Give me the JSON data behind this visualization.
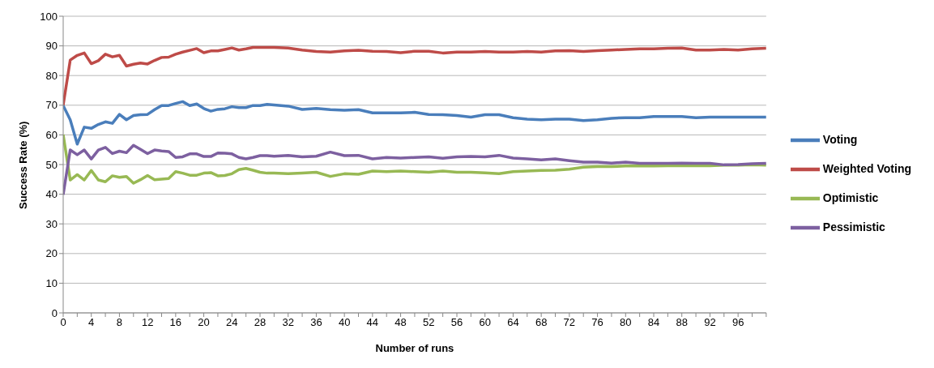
{
  "chart_data": {
    "type": "line",
    "xlabel": "Number of runs",
    "ylabel": "Success Rate (%)",
    "x": [
      0,
      1,
      2,
      3,
      4,
      5,
      6,
      7,
      8,
      9,
      10,
      11,
      12,
      13,
      14,
      15,
      16,
      17,
      18,
      19,
      20,
      21,
      22,
      23,
      24,
      25,
      26,
      27,
      28,
      29,
      30,
      32,
      34,
      36,
      38,
      40,
      42,
      44,
      46,
      48,
      50,
      52,
      54,
      56,
      58,
      60,
      62,
      64,
      66,
      68,
      70,
      72,
      74,
      76,
      78,
      80,
      82,
      84,
      86,
      88,
      90,
      92,
      94,
      96,
      98,
      100
    ],
    "series": [
      {
        "name": "Voting",
        "color": "#4a7ebb",
        "values": [
          69.9,
          65.1,
          56.9,
          62.6,
          62.2,
          63.5,
          64.4,
          63.9,
          66.9,
          65.1,
          66.5,
          66.8,
          66.9,
          68.5,
          69.9,
          69.9,
          70.6,
          71.2,
          69.9,
          70.4,
          68.9,
          68,
          68.6,
          68.8,
          69.5,
          69.2,
          69.2,
          69.9,
          69.9,
          70.3,
          70.1,
          69.7,
          68.6,
          68.9,
          68.5,
          68.3,
          68.5,
          67.4,
          67.4,
          67.4,
          67.6,
          66.9,
          66.8,
          66.5,
          66,
          66.8,
          66.8,
          65.8,
          65.3,
          65.1,
          65.3,
          65.3,
          64.8,
          65.1,
          65.6,
          65.8,
          65.8,
          66.2,
          66.2,
          66.2,
          65.8,
          66,
          66,
          66,
          66,
          66
        ]
      },
      {
        "name": "Weighted Voting",
        "color": "#be4b48",
        "values": [
          70,
          85.2,
          86.8,
          87.6,
          84,
          85,
          87.2,
          86.3,
          86.8,
          83.2,
          83.8,
          84.2,
          83.9,
          85.1,
          86.1,
          86.2,
          87.2,
          87.9,
          88.5,
          89.1,
          87.7,
          88.3,
          88.3,
          88.8,
          89.3,
          88.6,
          89,
          89.5,
          89.5,
          89.5,
          89.5,
          89.3,
          88.6,
          88.1,
          87.9,
          88.3,
          88.5,
          88.2,
          88.1,
          87.7,
          88.2,
          88.2,
          87.6,
          87.9,
          87.9,
          88.1,
          87.9,
          87.9,
          88.1,
          87.9,
          88.3,
          88.4,
          88.1,
          88.4,
          88.6,
          88.8,
          89,
          89,
          89.2,
          89.3,
          88.6,
          88.6,
          88.8,
          88.6,
          89,
          89.2
        ]
      },
      {
        "name": "Optimistic",
        "color": "#98b954",
        "values": [
          60.1,
          44.8,
          46.6,
          44.8,
          48,
          44.8,
          44.2,
          46.2,
          45.7,
          46,
          43.7,
          44.9,
          46.3,
          44.9,
          45.1,
          45.3,
          47.6,
          47.1,
          46.4,
          46.4,
          47.1,
          47.3,
          46.2,
          46.3,
          46.9,
          48.3,
          48.7,
          48.1,
          47.4,
          47.1,
          47.1,
          46.9,
          47.1,
          47.4,
          46,
          46.9,
          46.7,
          47.8,
          47.6,
          47.8,
          47.6,
          47.4,
          47.8,
          47.4,
          47.4,
          47.2,
          46.9,
          47.6,
          47.8,
          48,
          48.1,
          48.4,
          49.1,
          49.3,
          49.3,
          49.5,
          49.5,
          49.5,
          49.6,
          49.6,
          49.6,
          49.6,
          49.8,
          49.8,
          49.9,
          49.8
        ]
      },
      {
        "name": "Pessimistic",
        "color": "#7d60a0",
        "values": [
          39.8,
          54.9,
          53.3,
          54.9,
          51.9,
          54.9,
          55.8,
          53.7,
          54.5,
          54,
          56.5,
          55.1,
          53.7,
          54.9,
          54.6,
          54.4,
          52.4,
          52.6,
          53.6,
          53.6,
          52.7,
          52.7,
          53.9,
          53.8,
          53.6,
          52.4,
          51.9,
          52.4,
          53,
          53,
          52.8,
          53.1,
          52.6,
          52.8,
          54.2,
          53,
          53.1,
          51.9,
          52.4,
          52.2,
          52.4,
          52.6,
          52.1,
          52.6,
          52.7,
          52.6,
          53.1,
          52.2,
          51.9,
          51.6,
          51.9,
          51.3,
          50.8,
          50.8,
          50.5,
          50.8,
          50.4,
          50.4,
          50.4,
          50.5,
          50.4,
          50.4,
          49.9,
          50,
          50.3,
          50.4
        ]
      }
    ],
    "xlim": [
      0,
      100
    ],
    "xticks": [
      0,
      {
        "value": 2,
        "label": null
      },
      4,
      {
        "value": 6,
        "label": null
      },
      8,
      {
        "value": 10,
        "label": null
      },
      12,
      {
        "value": 14,
        "label": null
      },
      16,
      {
        "value": 18,
        "label": null
      },
      20,
      {
        "value": 22,
        "label": null
      },
      24,
      {
        "value": 26,
        "label": null
      },
      28,
      {
        "value": 30,
        "label": null
      },
      32,
      {
        "value": 34,
        "label": null
      },
      36,
      {
        "value": 38,
        "label": null
      },
      40,
      {
        "value": 42,
        "label": null
      },
      44,
      {
        "value": 46,
        "label": null
      },
      48,
      {
        "value": 50,
        "label": null
      },
      52,
      {
        "value": 54,
        "label": null
      },
      56,
      {
        "value": 58,
        "label": null
      },
      60,
      {
        "value": 62,
        "label": null
      },
      64,
      {
        "value": 66,
        "label": null
      },
      68,
      {
        "value": 70,
        "label": null
      },
      72,
      {
        "value": 74,
        "label": null
      },
      76,
      {
        "value": 78,
        "label": null
      },
      80,
      {
        "value": 82,
        "label": null
      },
      84,
      {
        "value": 86,
        "label": null
      },
      88,
      {
        "value": 90,
        "label": null
      },
      92,
      {
        "value": 94,
        "label": null
      },
      96,
      {
        "value": 98,
        "label": null
      },
      {
        "value": 100,
        "label": null
      }
    ],
    "ylim": [
      0,
      100
    ],
    "yticks": [
      0,
      10,
      20,
      30,
      40,
      50,
      60,
      70,
      80,
      90,
      100
    ],
    "grid": "y",
    "legend": "right",
    "line_style": "solid"
  }
}
